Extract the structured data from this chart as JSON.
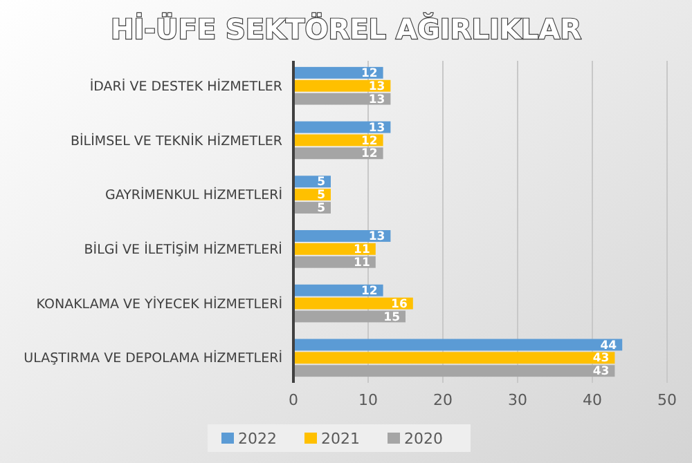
{
  "chart_data": {
    "type": "bar",
    "orientation": "horizontal",
    "title": "Hİ-ÜFE SEKTÖREL AĞIRLIKLAR",
    "categories": [
      "İDARİ VE DESTEK HİZMETLER",
      "BİLİMSEL VE TEKNİK HİZMETLER",
      "GAYRİMENKUL HİZMETLERİ",
      "BİLGİ VE İLETİŞİM HİZMETLERİ",
      "KONAKLAMA VE YİYECEK HİZMETLERİ",
      "ULAŞTIRMA VE DEPOLAMA HİZMETLERİ"
    ],
    "series": [
      {
        "name": "2022",
        "color": "#5b9bd5",
        "values": [
          12,
          13,
          5,
          13,
          12,
          44
        ]
      },
      {
        "name": "2021",
        "color": "#ffc000",
        "values": [
          13,
          12,
          5,
          11,
          16,
          43
        ]
      },
      {
        "name": "2020",
        "color": "#a5a5a5",
        "values": [
          13,
          12,
          5,
          11,
          15,
          43
        ]
      }
    ],
    "xlim": [
      0,
      50
    ],
    "xticks": [
      0,
      10,
      20,
      30,
      40,
      50
    ],
    "grid": "x",
    "data_labels": true,
    "legend": "bottom"
  }
}
